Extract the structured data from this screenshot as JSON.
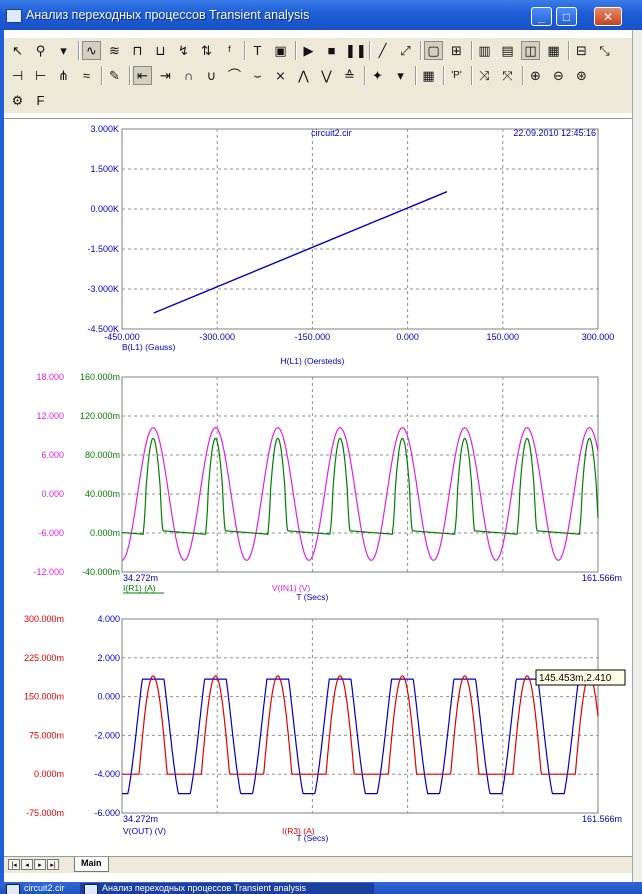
{
  "window": {
    "title": "Анализ переходных процессов Transient analysis",
    "minimize_glyph": "_",
    "maximize_glyph": "□",
    "close_glyph": "✕"
  },
  "colors": {
    "titlebar": "#1f5fd8",
    "axis_blue": "#0000c0",
    "trace_blue": "#0000c0",
    "trace_magenta": "#e020e0",
    "trace_green": "#008000",
    "trace_red": "#e00000",
    "grid": "#909090"
  },
  "toolbar_rows": [
    [
      {
        "name": "select-icon",
        "glyph": "↖"
      },
      {
        "name": "component-icon",
        "glyph": "⚲"
      },
      {
        "name": "dropdown-icon",
        "glyph": "▾"
      },
      {
        "name": "waveform-icon",
        "glyph": "∿"
      },
      {
        "name": "waveform-multi-icon",
        "glyph": "≋"
      },
      {
        "name": "wire-icon",
        "glyph": "⊓"
      },
      {
        "name": "bus-icon",
        "glyph": "⊔"
      },
      {
        "name": "probe-icon",
        "glyph": "↯"
      },
      {
        "name": "scale-icon",
        "glyph": "⇅"
      },
      {
        "name": "fft-icon",
        "glyph": "ᶠ"
      },
      {
        "name": "text-icon",
        "glyph": "T"
      },
      {
        "name": "properties-icon",
        "glyph": "▣"
      },
      {
        "name": "run-icon",
        "glyph": "▶"
      },
      {
        "name": "stop-icon",
        "glyph": "■"
      },
      {
        "name": "pause-icon",
        "glyph": "❚❚"
      },
      {
        "name": "line-icon",
        "glyph": "╱"
      },
      {
        "name": "line-end-icon",
        "glyph": "⤢"
      },
      {
        "name": "frame-icon",
        "glyph": "▢"
      },
      {
        "name": "grid-icon",
        "glyph": "⊞"
      },
      {
        "name": "vgrid-icon",
        "glyph": "▥"
      },
      {
        "name": "hgrid-icon",
        "glyph": "▤"
      },
      {
        "name": "tile-icon",
        "glyph": "◫"
      },
      {
        "name": "cascade-icon",
        "glyph": "▦"
      },
      {
        "name": "panel-icon",
        "glyph": "⊟"
      },
      {
        "name": "cursor-tool-icon",
        "glyph": "⤡"
      }
    ],
    [
      {
        "name": "cursor-left-icon",
        "glyph": "⊣"
      },
      {
        "name": "cursor-right-icon",
        "glyph": "⊢"
      },
      {
        "name": "cursor-jump-icon",
        "glyph": "⋔"
      },
      {
        "name": "cursor-off-icon",
        "glyph": "≈"
      },
      {
        "name": "edit-icon",
        "glyph": "✎"
      },
      {
        "name": "track-left-icon",
        "glyph": "⇤"
      },
      {
        "name": "track-right-icon",
        "glyph": "⇥"
      },
      {
        "name": "peak-icon",
        "glyph": "∩"
      },
      {
        "name": "valley-icon",
        "glyph": "∪"
      },
      {
        "name": "high-icon",
        "glyph": "⌒"
      },
      {
        "name": "low-icon",
        "glyph": "⌣"
      },
      {
        "name": "inflection-icon",
        "glyph": "⨯"
      },
      {
        "name": "global-high-icon",
        "glyph": "⋀"
      },
      {
        "name": "global-low-icon",
        "glyph": "⋁"
      },
      {
        "name": "slope-icon",
        "glyph": "≙"
      },
      {
        "name": "tag-icon",
        "glyph": "✦"
      },
      {
        "name": "tag-dropdown-icon",
        "glyph": "▾"
      },
      {
        "name": "table-icon",
        "glyph": "▦"
      },
      {
        "name": "tag-point-icon",
        "glyph": "'P'"
      },
      {
        "name": "scale-x-icon",
        "glyph": "⤨"
      },
      {
        "name": "scale-y-icon",
        "glyph": "⤧"
      },
      {
        "name": "zoom-in-icon",
        "glyph": "⊕"
      },
      {
        "name": "zoom-out-icon",
        "glyph": "⊖"
      },
      {
        "name": "zoom-fit-icon",
        "glyph": "⊛"
      }
    ],
    [
      {
        "name": "settings-gear-icon",
        "glyph": "⚙"
      },
      {
        "name": "font-icon",
        "glyph": "F"
      }
    ]
  ],
  "bottom": {
    "tab_label": "Main"
  },
  "taskbar": {
    "items": [
      "circuit2.cir",
      "Анализ переходных процессов Transient analysis"
    ]
  },
  "chart_data": [
    {
      "type": "line",
      "file_label": "circuit2.cir",
      "timestamp": "22.09.2010 12:45:16",
      "xlabel": "H(L1) (Oersteds)",
      "ylabel": "B(L1) (Gauss)",
      "xlim": [
        -450,
        300
      ],
      "ylim": [
        -4500,
        3000
      ],
      "x_ticks": [
        "-450.000",
        "-300.000",
        "-150.000",
        "0.000",
        "150.000",
        "300.000"
      ],
      "y_ticks": [
        "3.000K",
        "1.500K",
        "0.000K",
        "-1.500K",
        "-3.000K",
        "-4.500K"
      ],
      "series": [
        {
          "color": "#0000c0",
          "x": [
            -400,
            62
          ],
          "y": [
            -3900,
            650
          ]
        }
      ]
    },
    {
      "type": "line",
      "xlabel": "T (Secs)",
      "x_range_labels": [
        "34.272m",
        "161.566m"
      ],
      "xlim": [
        34.272,
        161.566
      ],
      "y_left_outer": {
        "ticks": [
          "18.000",
          "12.000",
          "6.000",
          "0.000",
          "-6.000",
          "-12.000"
        ],
        "lim": [
          -12,
          18
        ],
        "color": "#e020e0"
      },
      "y_left_inner": {
        "ticks": [
          "160.000m",
          "120.000m",
          "80.000m",
          "40.000m",
          "0.000m",
          "-40.000m"
        ],
        "lim": [
          -40,
          160
        ],
        "color": "#008000"
      },
      "legend_labels": [
        "I(R1) (A)",
        "V(IN1) (V)"
      ],
      "series": [
        {
          "name": "V(IN1) (V)",
          "color": "#e020e0",
          "kind": "sine",
          "period_ms": 16.667,
          "phase_peak_ms": 42.6,
          "amplitude": 10.2,
          "offset": 0
        },
        {
          "name": "I(R1) (A)",
          "color": "#008000",
          "kind": "pulse",
          "period_ms": 16.667,
          "phase_peak_ms": 42.6,
          "peak": 97,
          "base_high": 3,
          "base_low": -2
        }
      ]
    },
    {
      "type": "line",
      "xlabel": "T (Secs)",
      "x_range_labels": [
        "34.272m",
        "161.566m"
      ],
      "xlim": [
        34.272,
        161.566
      ],
      "y_left_outer": {
        "ticks": [
          "300.000m",
          "225.000m",
          "150.000m",
          "75.000m",
          "0.000m",
          "-75.000m"
        ],
        "lim": [
          -75,
          300
        ],
        "color": "#e00000"
      },
      "y_left_inner": {
        "ticks": [
          "4.000",
          "2.000",
          "0.000",
          "-2.000",
          "-4.000",
          "-6.000"
        ],
        "lim": [
          -6,
          4
        ],
        "color": "#0000c0"
      },
      "legend_labels": [
        "V(OUT) (V)",
        "I(R3) (A)"
      ],
      "cursor_label": "145.453m,2.410",
      "series": [
        {
          "name": "V(OUT) (V)",
          "color": "#0000c0",
          "kind": "clipped",
          "period_ms": 16.667,
          "phase_peak_ms": 42.6,
          "high": 0.9,
          "low": -5.0
        },
        {
          "name": "I(R3) (A)",
          "color": "#e00000",
          "kind": "halfwave",
          "period_ms": 16.667,
          "phase_peak_ms": 42.6,
          "peak": 190,
          "base": 0
        }
      ]
    }
  ]
}
